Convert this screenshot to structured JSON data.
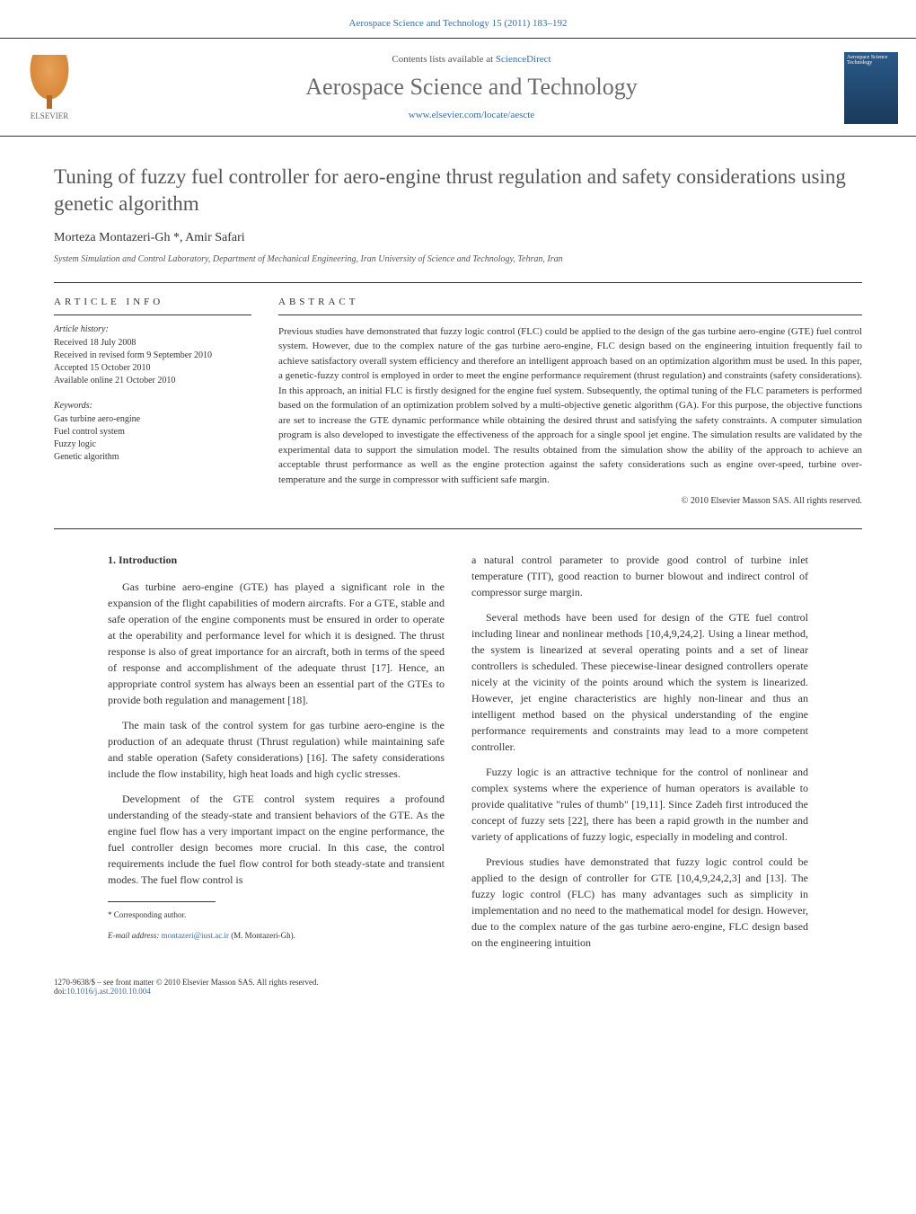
{
  "header": {
    "citation": "Aerospace Science and Technology 15 (2011) 183–192",
    "contents_prefix": "Contents lists available at ",
    "contents_link": "ScienceDirect",
    "journal_name": "Aerospace Science and Technology",
    "journal_url": "www.elsevier.com/locate/aescte",
    "publisher": "ELSEVIER",
    "cover_text": "Aerospace Science Technology"
  },
  "article": {
    "title": "Tuning of fuzzy fuel controller for aero-engine thrust regulation and safety considerations using genetic algorithm",
    "authors": "Morteza Montazeri-Gh *, Amir Safari",
    "affiliation": "System Simulation and Control Laboratory, Department of Mechanical Engineering, Iran University of Science and Technology, Tehran, Iran"
  },
  "info": {
    "heading": "ARTICLE INFO",
    "history_label": "Article history:",
    "history": "Received 18 July 2008\nReceived in revised form 9 September 2010\nAccepted 15 October 2010\nAvailable online 21 October 2010",
    "keywords_label": "Keywords:",
    "keywords": "Gas turbine aero-engine\nFuel control system\nFuzzy logic\nGenetic algorithm"
  },
  "abstract": {
    "heading": "ABSTRACT",
    "text": "Previous studies have demonstrated that fuzzy logic control (FLC) could be applied to the design of the gas turbine aero-engine (GTE) fuel control system. However, due to the complex nature of the gas turbine aero-engine, FLC design based on the engineering intuition frequently fail to achieve satisfactory overall system efficiency and therefore an intelligent approach based on an optimization algorithm must be used. In this paper, a genetic-fuzzy control is employed in order to meet the engine performance requirement (thrust regulation) and constraints (safety considerations). In this approach, an initial FLC is firstly designed for the engine fuel system. Subsequently, the optimal tuning of the FLC parameters is performed based on the formulation of an optimization problem solved by a multi-objective genetic algorithm (GA). For this purpose, the objective functions are set to increase the GTE dynamic performance while obtaining the desired thrust and satisfying the safety constraints. A computer simulation program is also developed to investigate the effectiveness of the approach for a single spool jet engine. The simulation results are validated by the experimental data to support the simulation model. The results obtained from the simulation show the ability of the approach to achieve an acceptable thrust performance as well as the engine protection against the safety considerations such as engine over-speed, turbine over-temperature and the surge in compressor with sufficient safe margin.",
    "copyright": "© 2010 Elsevier Masson SAS. All rights reserved."
  },
  "body": {
    "section_number": "1.",
    "section_title": "Introduction",
    "col1_p1": "Gas turbine aero-engine (GTE) has played a significant role in the expansion of the flight capabilities of modern aircrafts. For a GTE, stable and safe operation of the engine components must be ensured in order to operate at the operability and performance level for which it is designed. The thrust response is also of great importance for an aircraft, both in terms of the speed of response and accomplishment of the adequate thrust [17]. Hence, an appropriate control system has always been an essential part of the GTEs to provide both regulation and management [18].",
    "col1_p2": "The main task of the control system for gas turbine aero-engine is the production of an adequate thrust (Thrust regulation) while maintaining safe and stable operation (Safety considerations) [16]. The safety considerations include the flow instability, high heat loads and high cyclic stresses.",
    "col1_p3": "Development of the GTE control system requires a profound understanding of the steady-state and transient behaviors of the GTE. As the engine fuel flow has a very important impact on the engine performance, the fuel controller design becomes more crucial. In this case, the control requirements include the fuel flow control for both steady-state and transient modes. The fuel flow control is",
    "col2_p1": "a natural control parameter to provide good control of turbine inlet temperature (TIT), good reaction to burner blowout and indirect control of compressor surge margin.",
    "col2_p2": "Several methods have been used for design of the GTE fuel control including linear and nonlinear methods [10,4,9,24,2]. Using a linear method, the system is linearized at several operating points and a set of linear controllers is scheduled. These piecewise-linear designed controllers operate nicely at the vicinity of the points around which the system is linearized. However, jet engine characteristics are highly non-linear and thus an intelligent method based on the physical understanding of the engine performance requirements and constraints may lead to a more competent controller.",
    "col2_p3": "Fuzzy logic is an attractive technique for the control of nonlinear and complex systems where the experience of human operators is available to provide qualitative \"rules of thumb\" [19,11]. Since Zadeh first introduced the concept of fuzzy sets [22], there has been a rapid growth in the number and variety of applications of fuzzy logic, especially in modeling and control.",
    "col2_p4": "Previous studies have demonstrated that fuzzy logic control could be applied to the design of controller for GTE [10,4,9,24,2,3] and [13]. The fuzzy logic control (FLC) has many advantages such as simplicity in implementation and no need to the mathematical model for design. However, due to the complex nature of the gas turbine aero-engine, FLC design based on the engineering intuition"
  },
  "footnote": {
    "corresponding": "* Corresponding author.",
    "email_label": "E-mail address: ",
    "email": "montazeri@iust.ac.ir",
    "email_suffix": " (M. Montazeri-Gh)."
  },
  "footer": {
    "issn": "1270-9638/$ – see front matter © 2010 Elsevier Masson SAS. All rights reserved.",
    "doi_label": "doi:",
    "doi": "10.1016/j.ast.2010.10.004"
  },
  "colors": {
    "link": "#3a6ca8",
    "text": "#333333",
    "heading_gray": "#555555",
    "journal_gray": "#6a6a6a"
  }
}
